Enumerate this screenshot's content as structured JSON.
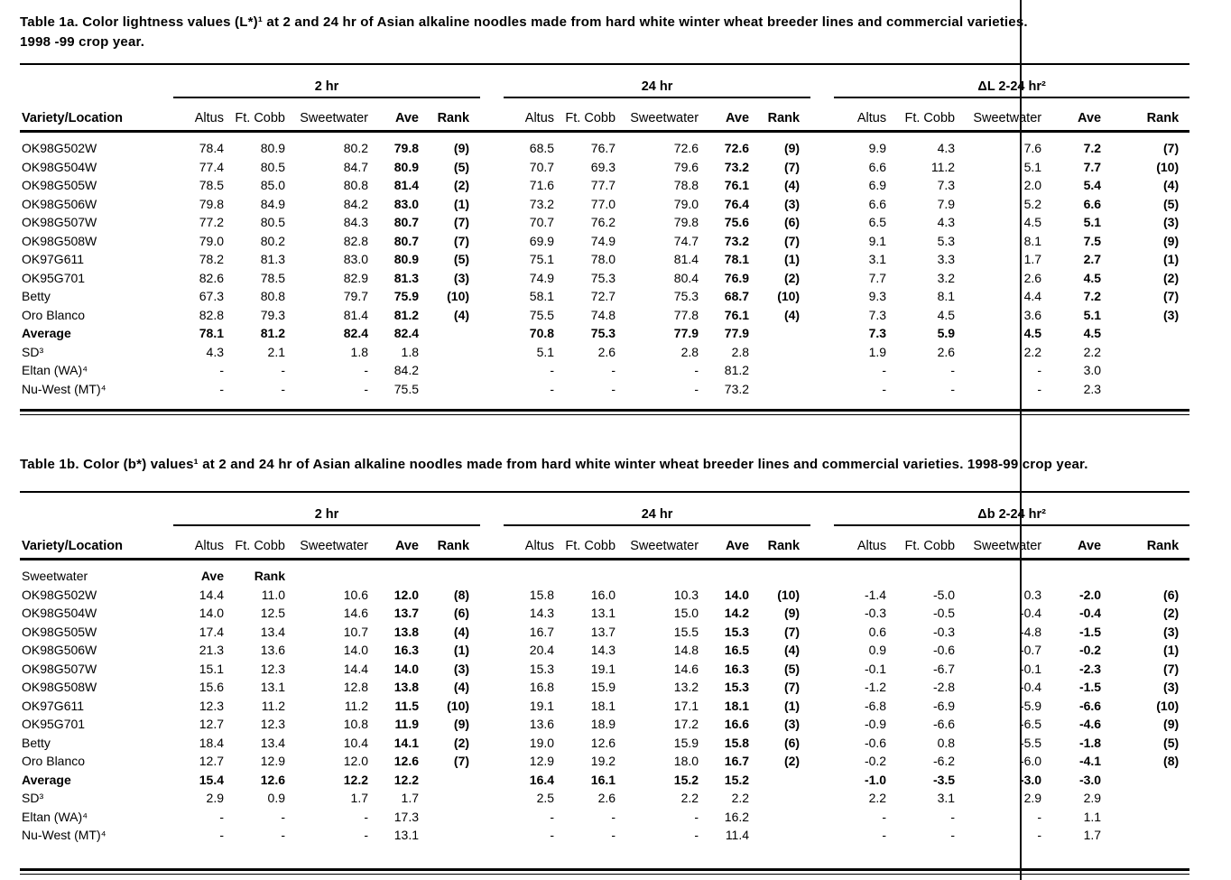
{
  "page": {
    "background": "#ffffff",
    "text_color": "#000000"
  },
  "tables": [
    {
      "name": "table-1a",
      "caption_lines": [
        "Table 1a.  Color lightness values (L*)¹ at 2 and 24 hr of Asian alkaline noodles made from hard white winter wheat breeder lines and commercial varieties.",
        "1998 -99 crop year."
      ],
      "row_header": "Variety/Location",
      "groups": [
        {
          "label": "2 hr",
          "columns": [
            "Altus",
            "Ft. Cobb",
            "Sweetwater",
            "Ave",
            "Rank"
          ]
        },
        {
          "label": "24 hr",
          "columns": [
            "Altus",
            "Ft. Cobb",
            "Sweetwater",
            "Ave",
            "Rank"
          ]
        },
        {
          "label": "ΔL 2-24 hr²",
          "columns": [
            "Altus",
            "Ft. Cobb",
            "Sweetwater",
            "Ave",
            "Rank"
          ]
        }
      ],
      "rows": [
        {
          "label": "OK98G502W",
          "style": "variety",
          "g1": [
            "78.4",
            "80.9",
            "80.2",
            "79.8",
            "(9)"
          ],
          "g2": [
            "68.5",
            "76.7",
            "72.6",
            "72.6",
            "(9)"
          ],
          "g3": [
            "9.9",
            "4.3",
            "7.6",
            "7.2",
            "(7)"
          ]
        },
        {
          "label": "OK98G504W",
          "style": "variety",
          "g1": [
            "77.4",
            "80.5",
            "84.7",
            "80.9",
            "(5)"
          ],
          "g2": [
            "70.7",
            "69.3",
            "79.6",
            "73.2",
            "(7)"
          ],
          "g3": [
            "6.6",
            "11.2",
            "5.1",
            "7.7",
            "(10)"
          ]
        },
        {
          "label": "OK98G505W",
          "style": "variety",
          "g1": [
            "78.5",
            "85.0",
            "80.8",
            "81.4",
            "(2)"
          ],
          "g2": [
            "71.6",
            "77.7",
            "78.8",
            "76.1",
            "(4)"
          ],
          "g3": [
            "6.9",
            "7.3",
            "2.0",
            "5.4",
            "(4)"
          ]
        },
        {
          "label": "OK98G506W",
          "style": "variety",
          "g1": [
            "79.8",
            "84.9",
            "84.2",
            "83.0",
            "(1)"
          ],
          "g2": [
            "73.2",
            "77.0",
            "79.0",
            "76.4",
            "(3)"
          ],
          "g3": [
            "6.6",
            "7.9",
            "5.2",
            "6.6",
            "(5)"
          ]
        },
        {
          "label": "OK98G507W",
          "style": "variety",
          "g1": [
            "77.2",
            "80.5",
            "84.3",
            "80.7",
            "(7)"
          ],
          "g2": [
            "70.7",
            "76.2",
            "79.8",
            "75.6",
            "(6)"
          ],
          "g3": [
            "6.5",
            "4.3",
            "4.5",
            "5.1",
            "(3)"
          ]
        },
        {
          "label": "OK98G508W",
          "style": "variety",
          "g1": [
            "79.0",
            "80.2",
            "82.8",
            "80.7",
            "(7)"
          ],
          "g2": [
            "69.9",
            "74.9",
            "74.7",
            "73.2",
            "(7)"
          ],
          "g3": [
            "9.1",
            "5.3",
            "8.1",
            "7.5",
            "(9)"
          ]
        },
        {
          "label": "OK97G611",
          "style": "variety",
          "g1": [
            "78.2",
            "81.3",
            "83.0",
            "80.9",
            "(5)"
          ],
          "g2": [
            "75.1",
            "78.0",
            "81.4",
            "78.1",
            "(1)"
          ],
          "g3": [
            "3.1",
            "3.3",
            "1.7",
            "2.7",
            "(1)"
          ]
        },
        {
          "label": "OK95G701",
          "style": "variety",
          "g1": [
            "82.6",
            "78.5",
            "82.9",
            "81.3",
            "(3)"
          ],
          "g2": [
            "74.9",
            "75.3",
            "80.4",
            "76.9",
            "(2)"
          ],
          "g3": [
            "7.7",
            "3.2",
            "2.6",
            "4.5",
            "(2)"
          ]
        },
        {
          "label": "Betty",
          "style": "variety",
          "g1": [
            "67.3",
            "80.8",
            "79.7",
            "75.9",
            "(10)"
          ],
          "g2": [
            "58.1",
            "72.7",
            "75.3",
            "68.7",
            "(10)"
          ],
          "g3": [
            "9.3",
            "8.1",
            "4.4",
            "7.2",
            "(7)"
          ]
        },
        {
          "label": "Oro Blanco",
          "style": "variety",
          "g1": [
            "82.8",
            "79.3",
            "81.4",
            "81.2",
            "(4)"
          ],
          "g2": [
            "75.5",
            "74.8",
            "77.8",
            "76.1",
            "(4)"
          ],
          "g3": [
            "7.3",
            "4.5",
            "3.6",
            "5.1",
            "(3)"
          ]
        },
        {
          "label": "Average",
          "style": "average",
          "g1": [
            "78.1",
            "81.2",
            "82.4",
            "82.4",
            ""
          ],
          "g2": [
            "70.8",
            "75.3",
            "77.9",
            "77.9",
            ""
          ],
          "g3": [
            "7.3",
            "5.9",
            "4.5",
            "4.5",
            ""
          ]
        },
        {
          "label": "SD³",
          "style": "stat",
          "g1": [
            "4.3",
            "2.1",
            "1.8",
            "1.8",
            ""
          ],
          "g2": [
            "5.1",
            "2.6",
            "2.8",
            "2.8",
            ""
          ],
          "g3": [
            "1.9",
            "2.6",
            "2.2",
            "2.2",
            ""
          ]
        },
        {
          "label": "Eltan (WA)⁴",
          "style": "stat",
          "g1": [
            "-",
            "-",
            "-",
            "84.2",
            ""
          ],
          "g2": [
            "-",
            "-",
            "-",
            "81.2",
            ""
          ],
          "g3": [
            "-",
            "-",
            "-",
            "3.0",
            ""
          ]
        },
        {
          "label": "Nu-West (MT)⁴",
          "style": "stat",
          "g1": [
            "-",
            "-",
            "-",
            "75.5",
            ""
          ],
          "g2": [
            "-",
            "-",
            "-",
            "73.2",
            ""
          ],
          "g3": [
            "-",
            "-",
            "-",
            "2.3",
            ""
          ]
        }
      ]
    },
    {
      "name": "table-1b",
      "caption_lines": [
        "Table 1b.  Color (b*) values¹ at 2 and 24 hr of Asian alkaline noodles made from hard white winter wheat breeder lines and commercial varieties.  1998-99 crop year."
      ],
      "row_header": "Variety/Location",
      "groups": [
        {
          "label": "2 hr",
          "columns": [
            "Altus",
            "Ft. Cobb",
            "Sweetwater",
            "Ave",
            "Rank"
          ]
        },
        {
          "label": "24 hr",
          "columns": [
            "Altus",
            "Ft. Cobb",
            "Sweetwater",
            "Ave",
            "Rank"
          ]
        },
        {
          "label": "Δb 2-24 hr²",
          "columns": [
            "Altus",
            "Ft. Cobb",
            "Sweetwater",
            "Ave",
            "Rank"
          ]
        }
      ],
      "rows": [
        {
          "label": "Sweetwater",
          "style": "subhead",
          "g1": [
            "Ave",
            "Rank",
            "",
            "",
            ""
          ],
          "g2": [
            "",
            "",
            "",
            "",
            ""
          ],
          "g3": [
            "",
            "",
            "",
            "",
            ""
          ]
        },
        {
          "label": "OK98G502W",
          "style": "variety",
          "g1": [
            "14.4",
            "11.0",
            "10.6",
            "12.0",
            "(8)"
          ],
          "g2": [
            "15.8",
            "16.0",
            "10.3",
            "14.0",
            "(10)"
          ],
          "g3": [
            "-1.4",
            "-5.0",
            "0.3",
            "-2.0",
            "(6)"
          ]
        },
        {
          "label": "OK98G504W",
          "style": "variety",
          "g1": [
            "14.0",
            "12.5",
            "14.6",
            "13.7",
            "(6)"
          ],
          "g2": [
            "14.3",
            "13.1",
            "15.0",
            "14.2",
            "(9)"
          ],
          "g3": [
            "-0.3",
            "-0.5",
            "-0.4",
            "-0.4",
            "(2)"
          ]
        },
        {
          "label": "OK98G505W",
          "style": "variety",
          "g1": [
            "17.4",
            "13.4",
            "10.7",
            "13.8",
            "(4)"
          ],
          "g2": [
            "16.7",
            "13.7",
            "15.5",
            "15.3",
            "(7)"
          ],
          "g3": [
            "0.6",
            "-0.3",
            "-4.8",
            "-1.5",
            "(3)"
          ]
        },
        {
          "label": "OK98G506W",
          "style": "variety",
          "g1": [
            "21.3",
            "13.6",
            "14.0",
            "16.3",
            "(1)"
          ],
          "g2": [
            "20.4",
            "14.3",
            "14.8",
            "16.5",
            "(4)"
          ],
          "g3": [
            "0.9",
            "-0.6",
            "-0.7",
            "-0.2",
            "(1)"
          ]
        },
        {
          "label": "OK98G507W",
          "style": "variety",
          "g1": [
            "15.1",
            "12.3",
            "14.4",
            "14.0",
            "(3)"
          ],
          "g2": [
            "15.3",
            "19.1",
            "14.6",
            "16.3",
            "(5)"
          ],
          "g3": [
            "-0.1",
            "-6.7",
            "-0.1",
            "-2.3",
            "(7)"
          ]
        },
        {
          "label": "OK98G508W",
          "style": "variety",
          "g1": [
            "15.6",
            "13.1",
            "12.8",
            "13.8",
            "(4)"
          ],
          "g2": [
            "16.8",
            "15.9",
            "13.2",
            "15.3",
            "(7)"
          ],
          "g3": [
            "-1.2",
            "-2.8",
            "-0.4",
            "-1.5",
            "(3)"
          ]
        },
        {
          "label": "OK97G611",
          "style": "variety",
          "g1": [
            "12.3",
            "11.2",
            "11.2",
            "11.5",
            "(10)"
          ],
          "g2": [
            "19.1",
            "18.1",
            "17.1",
            "18.1",
            "(1)"
          ],
          "g3": [
            "-6.8",
            "-6.9",
            "-5.9",
            "-6.6",
            "(10)"
          ]
        },
        {
          "label": "OK95G701",
          "style": "variety",
          "g1": [
            "12.7",
            "12.3",
            "10.8",
            "11.9",
            "(9)"
          ],
          "g2": [
            "13.6",
            "18.9",
            "17.2",
            "16.6",
            "(3)"
          ],
          "g3": [
            "-0.9",
            "-6.6",
            "-6.5",
            "-4.6",
            "(9)"
          ]
        },
        {
          "label": "Betty",
          "style": "variety",
          "g1": [
            "18.4",
            "13.4",
            "10.4",
            "14.1",
            "(2)"
          ],
          "g2": [
            "19.0",
            "12.6",
            "15.9",
            "15.8",
            "(6)"
          ],
          "g3": [
            "-0.6",
            "0.8",
            "-5.5",
            "-1.8",
            "(5)"
          ]
        },
        {
          "label": "Oro Blanco",
          "style": "variety",
          "g1": [
            "12.7",
            "12.9",
            "12.0",
            "12.6",
            "(7)"
          ],
          "g2": [
            "12.9",
            "19.2",
            "18.0",
            "16.7",
            "(2)"
          ],
          "g3": [
            "-0.2",
            "-6.2",
            "-6.0",
            "-4.1",
            "(8)"
          ]
        },
        {
          "label": "Average",
          "style": "average",
          "g1": [
            "15.4",
            "12.6",
            "12.2",
            "12.2",
            ""
          ],
          "g2": [
            "16.4",
            "16.1",
            "15.2",
            "15.2",
            ""
          ],
          "g3": [
            "-1.0",
            "-3.5",
            "-3.0",
            "-3.0",
            ""
          ]
        },
        {
          "label": "SD³",
          "style": "stat",
          "g1": [
            "2.9",
            "0.9",
            "1.7",
            "1.7",
            ""
          ],
          "g2": [
            "2.5",
            "2.6",
            "2.2",
            "2.2",
            ""
          ],
          "g3": [
            "2.2",
            "3.1",
            "2.9",
            "2.9",
            ""
          ]
        },
        {
          "label": "Eltan (WA)⁴",
          "style": "stat",
          "g1": [
            "-",
            "-",
            "-",
            "17.3",
            ""
          ],
          "g2": [
            "-",
            "-",
            "-",
            "16.2",
            ""
          ],
          "g3": [
            "-",
            "-",
            "-",
            "1.1",
            ""
          ]
        },
        {
          "label": "Nu-West (MT)⁴",
          "style": "stat",
          "g1": [
            "-",
            "-",
            "-",
            "13.1",
            ""
          ],
          "g2": [
            "-",
            "-",
            "-",
            "11.4",
            ""
          ],
          "g3": [
            "-",
            "-",
            "-",
            "1.7",
            ""
          ]
        }
      ]
    }
  ]
}
